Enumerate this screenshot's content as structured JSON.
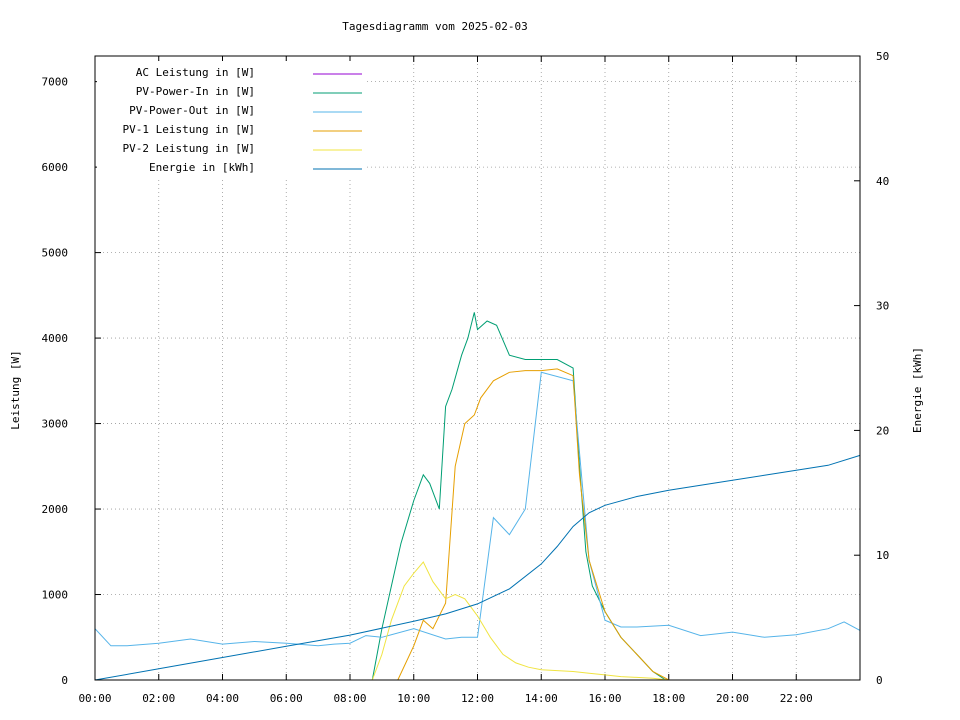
{
  "chart_data": {
    "type": "line",
    "title": "Tagesdiagramm vom 2025-02-03",
    "ylabel": "Leistung [W]",
    "y2label": "Energie [kWh]",
    "xlabel": "",
    "xlim": [
      0,
      24
    ],
    "ylim": [
      0,
      7300
    ],
    "y2lim": [
      0,
      50
    ],
    "x_ticks": [
      "00:00",
      "02:00",
      "04:00",
      "06:00",
      "08:00",
      "10:00",
      "12:00",
      "14:00",
      "16:00",
      "18:00",
      "20:00",
      "22:00"
    ],
    "y_ticks": [
      0,
      1000,
      2000,
      3000,
      4000,
      5000,
      6000,
      7000
    ],
    "y2_ticks": [
      0,
      10,
      20,
      30,
      40,
      50
    ],
    "grid": true,
    "legend_position": "top-left",
    "series": [
      {
        "name": "AC Leistung in [W]",
        "axis": "left",
        "color": "#9400d3",
        "x": [],
        "values": []
      },
      {
        "name": "PV-Power-In in [W]",
        "axis": "left",
        "color": "#009e73",
        "x": [
          8.7,
          9.0,
          9.3,
          9.6,
          10.0,
          10.3,
          10.5,
          10.8,
          11.0,
          11.2,
          11.5,
          11.7,
          11.9,
          12.0,
          12.3,
          12.6,
          13.0,
          13.5,
          14.0,
          14.5,
          15.0,
          15.2,
          15.4,
          15.6,
          16.0,
          16.5,
          17.0,
          17.5,
          17.9
        ],
        "values": [
          0,
          600,
          1100,
          1600,
          2100,
          2400,
          2300,
          2000,
          3200,
          3400,
          3800,
          4000,
          4300,
          4100,
          4200,
          4150,
          3800,
          3750,
          3750,
          3750,
          3650,
          2500,
          1500,
          1100,
          800,
          500,
          300,
          100,
          0
        ]
      },
      {
        "name": "PV-Power-Out in [W]",
        "axis": "left",
        "color": "#56b4e9",
        "x": [
          0,
          0.5,
          1,
          2,
          3,
          4,
          5,
          6,
          7,
          7.5,
          8,
          8.5,
          9,
          10,
          11,
          11.5,
          12,
          12.5,
          13,
          13.5,
          14,
          15,
          15.5,
          16,
          16.5,
          17,
          18,
          19,
          20,
          21,
          22,
          23,
          23.5,
          24
        ],
        "values": [
          600,
          400,
          400,
          430,
          480,
          420,
          450,
          430,
          400,
          420,
          430,
          520,
          500,
          600,
          480,
          500,
          500,
          1900,
          1700,
          2000,
          3600,
          3500,
          1400,
          700,
          620,
          620,
          640,
          520,
          560,
          500,
          530,
          600,
          680,
          580
        ]
      },
      {
        "name": "PV-1 Leistung in [W]",
        "axis": "left",
        "color": "#e69f00",
        "x": [
          9.5,
          10.0,
          10.3,
          10.6,
          11.0,
          11.3,
          11.6,
          11.9,
          12.1,
          12.5,
          13.0,
          13.5,
          14.0,
          14.5,
          15.0,
          15.2,
          15.5,
          16.0,
          16.5,
          17.0,
          17.5,
          18.0
        ],
        "values": [
          0,
          400,
          700,
          600,
          900,
          2500,
          3000,
          3100,
          3300,
          3500,
          3600,
          3620,
          3620,
          3640,
          3560,
          2400,
          1400,
          800,
          500,
          300,
          100,
          0
        ]
      },
      {
        "name": "PV-2 Leistung in [W]",
        "axis": "left",
        "color": "#f0e442",
        "x": [
          8.7,
          9.0,
          9.3,
          9.7,
          10.0,
          10.3,
          10.6,
          11.0,
          11.3,
          11.6,
          12.0,
          12.4,
          12.8,
          13.2,
          13.6,
          14.0,
          14.5,
          15.0,
          15.5,
          16.0,
          16.5,
          17.0,
          17.5,
          18.0
        ],
        "values": [
          0,
          300,
          700,
          1100,
          1250,
          1380,
          1150,
          950,
          1000,
          950,
          750,
          500,
          300,
          200,
          150,
          120,
          110,
          100,
          80,
          60,
          40,
          30,
          20,
          0
        ]
      },
      {
        "name": "Energie in [kWh]",
        "axis": "right",
        "color": "#0072b2",
        "x": [
          0,
          2,
          4,
          6,
          8,
          10,
          11,
          12,
          13,
          14,
          14.5,
          15,
          15.5,
          16,
          17,
          18,
          19,
          20,
          21,
          22,
          23,
          24
        ],
        "values": [
          0,
          0.9,
          1.8,
          2.7,
          3.6,
          4.7,
          5.3,
          6.1,
          7.3,
          9.3,
          10.7,
          12.3,
          13.4,
          14.0,
          14.7,
          15.2,
          15.6,
          16.0,
          16.4,
          16.8,
          17.2,
          18.0
        ]
      }
    ]
  }
}
